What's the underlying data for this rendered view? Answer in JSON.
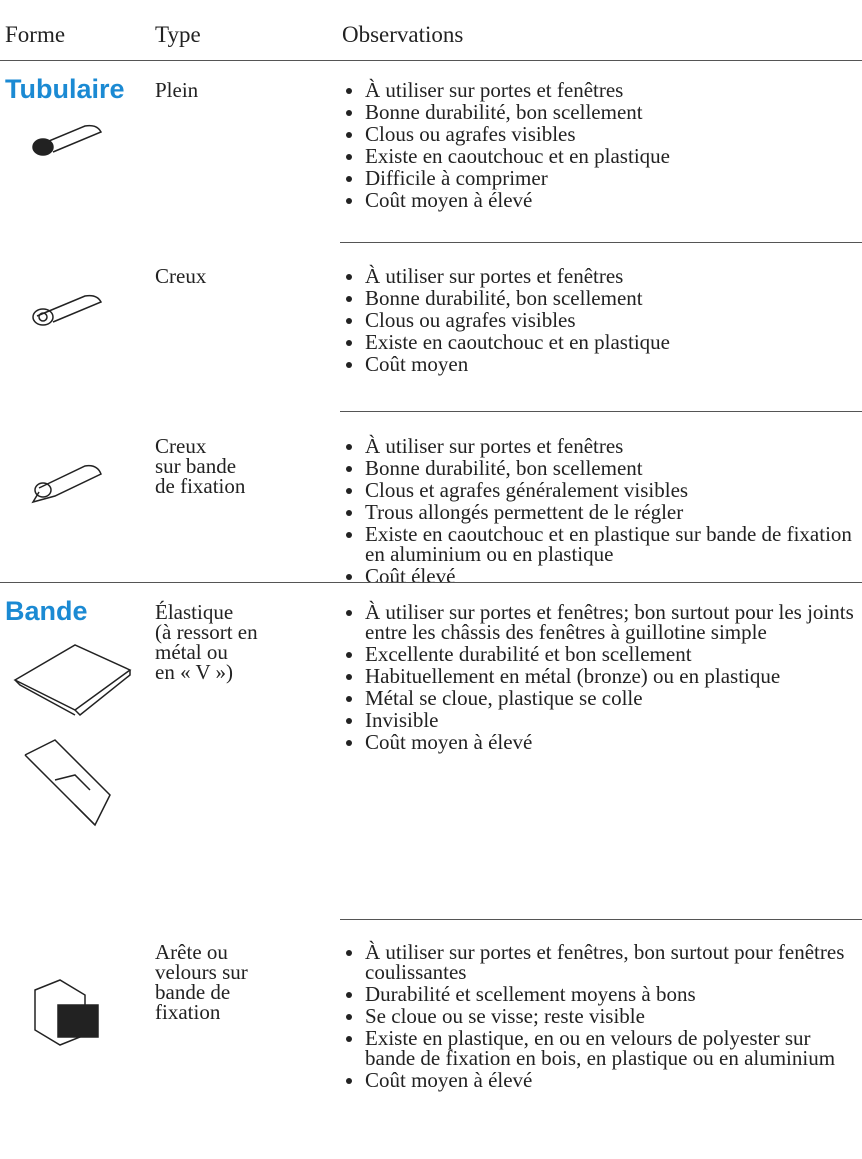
{
  "header": {
    "forme": "Forme",
    "type": "Type",
    "observations": "Observations"
  },
  "groups": [
    {
      "forme": "Tubulaire",
      "rows": [
        {
          "type": [
            "Plein"
          ],
          "observations": [
            "À utiliser sur portes et fenêtres",
            "Bonne durabilité, bon scellement",
            "Clous ou agrafes visibles",
            "Existe en caoutchouc et en plastique",
            "Difficile à comprimer",
            "Coût moyen à élevé"
          ]
        },
        {
          "type": [
            "Creux"
          ],
          "observations": [
            "À utiliser sur portes et fenêtres",
            "Bonne durabilité, bon scellement",
            "Clous ou agrafes visibles",
            "Existe en caoutchouc et en plastique",
            "Coût moyen"
          ]
        },
        {
          "type": [
            "Creux",
            "sur bande",
            "de fixation"
          ],
          "observations": [
            "À utiliser sur portes et fenêtres",
            "Bonne durabilité, bon scellement",
            "Clous et agrafes généralement visibles",
            "Trous allongés permettent de le régler",
            "Existe en caoutchouc et en plastique sur bande de fixation en aluminium ou en plastique",
            "Coût élevé"
          ]
        }
      ]
    },
    {
      "forme": "Bande",
      "rows": [
        {
          "type": [
            "Élastique",
            "(à ressort en",
            "métal ou",
            "en « V »)"
          ],
          "observations": [
            "À utiliser sur portes et fenêtres; bon surtout pour les joints entre les châssis des fenêtres à guillotine simple",
            "Excellente durabilité et bon scellement",
            "Habituellement en métal (bronze) ou en plastique",
            "Métal se cloue, plastique se colle",
            "Invisible",
            "Coût moyen à élevé"
          ]
        },
        {
          "type": [
            "Arête ou",
            "velours sur",
            "bande de",
            "fixation"
          ],
          "observations": [
            "À utiliser sur portes et fenêtres, bon surtout pour fenêtres coulissantes",
            "Durabilité et scellement moyens à bons",
            "Se cloue ou se visse; reste visible",
            "Existe en plastique, en ou en velours de polyester sur bande de fixation en bois, en plastique ou en aluminium",
            "Coût moyen à élevé"
          ]
        }
      ]
    }
  ]
}
